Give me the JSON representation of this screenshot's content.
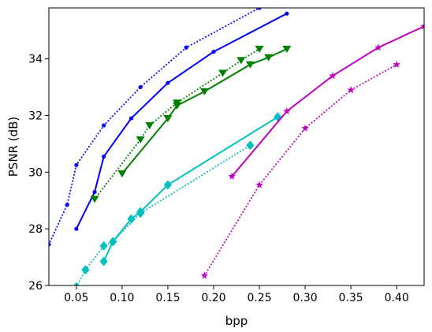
{
  "chart_data": {
    "type": "line",
    "title": "",
    "xlabel": "bpp",
    "ylabel": "PSNR (dB)",
    "xlim": [
      0.02,
      0.43
    ],
    "ylim": [
      26,
      35.8
    ],
    "x_ticks": [
      0.05,
      0.1,
      0.15,
      0.2,
      0.25,
      0.3,
      0.35,
      0.4
    ],
    "x_tick_labels": [
      "0.05",
      "0.10",
      "0.15",
      "0.20",
      "0.25",
      "0.30",
      "0.35",
      "0.40"
    ],
    "y_ticks": [
      26,
      28,
      30,
      32,
      34
    ],
    "y_tick_labels": [
      "26",
      "28",
      "30",
      "32",
      "34"
    ],
    "grid": false,
    "legend": "none",
    "series": [
      {
        "color": "#0000ff",
        "style": "dotted",
        "marker": "circle",
        "x": [
          0.02,
          0.04,
          0.05,
          0.08,
          0.12,
          0.17,
          0.25
        ],
        "y": [
          27.45,
          28.85,
          30.25,
          31.65,
          33.0,
          34.4,
          35.8
        ]
      },
      {
        "color": "#0000ff",
        "style": "solid",
        "marker": "circle",
        "x": [
          0.05,
          0.07,
          0.08,
          0.11,
          0.15,
          0.2,
          0.28
        ],
        "y": [
          28.0,
          29.3,
          30.55,
          31.9,
          33.15,
          34.25,
          35.6
        ]
      },
      {
        "color": "#008000",
        "style": "dotted",
        "marker": "triangle-down",
        "x": [
          0.07,
          0.12,
          0.13,
          0.16,
          0.21,
          0.23,
          0.25
        ],
        "y": [
          29.05,
          31.15,
          31.65,
          32.45,
          33.5,
          33.95,
          34.35
        ]
      },
      {
        "color": "#008000",
        "style": "solid",
        "marker": "triangle-down",
        "x": [
          0.1,
          0.15,
          0.16,
          0.19,
          0.24,
          0.26,
          0.28
        ],
        "y": [
          29.95,
          31.9,
          32.35,
          32.85,
          33.8,
          34.05,
          34.35
        ]
      },
      {
        "color": "#00bfbf",
        "style": "dotted",
        "marker": "diamond",
        "x": [
          0.05,
          0.06,
          0.08,
          0.09,
          0.12,
          0.24
        ],
        "y": [
          25.95,
          26.55,
          27.4,
          27.55,
          28.55,
          30.95
        ]
      },
      {
        "color": "#00bfbf",
        "style": "solid",
        "marker": "diamond",
        "x": [
          0.08,
          0.09,
          0.11,
          0.12,
          0.15,
          0.27
        ],
        "y": [
          26.85,
          27.55,
          28.35,
          28.6,
          29.55,
          31.95
        ]
      },
      {
        "color": "#bf00bf",
        "style": "dotted",
        "marker": "star",
        "x": [
          0.19,
          0.25,
          0.3,
          0.35,
          0.4
        ],
        "y": [
          26.35,
          29.55,
          31.55,
          32.9,
          33.8
        ]
      },
      {
        "color": "#bf00bf",
        "style": "solid",
        "marker": "star",
        "x": [
          0.22,
          0.28,
          0.33,
          0.38,
          0.43
        ],
        "y": [
          29.85,
          32.15,
          33.4,
          34.4,
          35.15
        ]
      }
    ]
  }
}
